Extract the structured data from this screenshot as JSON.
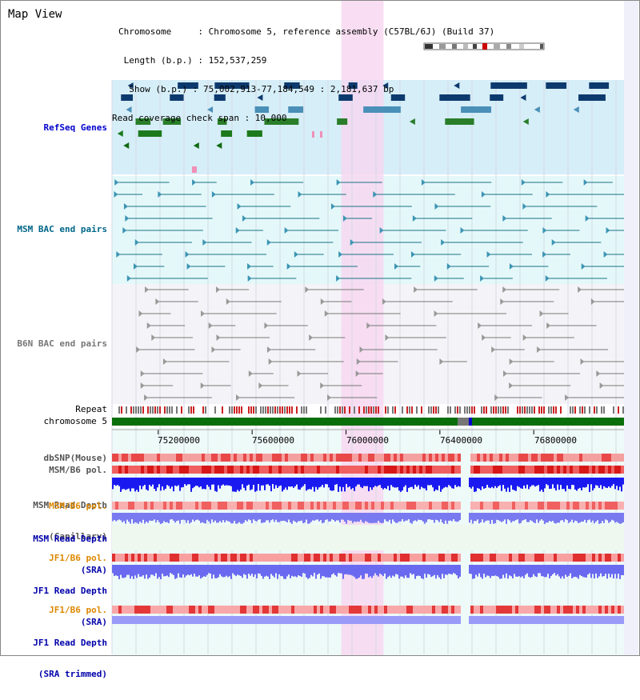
{
  "app": {
    "title": "Map View"
  },
  "info": {
    "chromosome_line": "Chromosome     : Chromosome 5, reference assembly (C57BL/6J) (Build 37)",
    "length_line": " Length (b.p.) : 152,537,259",
    "show_line": "  Show (b.p.) : 75,002,913-77,184,549 : 2,181,637 bp",
    "coverage_line": "Read coverage check span : 10,000"
  },
  "tracks": {
    "refseq": "RefSeq Genes",
    "msm_bac": "MSM BAC end pairs",
    "b6n_bac": "B6N BAC end pairs",
    "repeat": "Repeat",
    "chromosome": "chromosome 5",
    "dbsnp": "dbSNP(Mouse)",
    "msm_b6_pol": "MSM/B6 pol.",
    "msm_read_cap_1": "MSM Read Depth",
    "msm_read_cap_2": "(Capillary)",
    "msm_b6_pol_sra": "MSM/B6 pol.",
    "msm_read_sra_1": "MSM Read Depth",
    "msm_read_sra_2": "(SRA)",
    "jf1_b6_pol": "JF1/B6 pol.",
    "jf1_read_sra_1": "JF1 Read Depth",
    "jf1_read_sra_2": "(SRA)",
    "jf1_b6_pol_2": "JF1/B6 pol.",
    "jf1_read_trim_1": "JF1 Read Depth",
    "jf1_read_trim_2": "(SRA trimmed)"
  },
  "axis": {
    "ticks": [
      "75200000",
      "75600000",
      "76000000",
      "76400000",
      "76800000"
    ],
    "tick_values": [
      75200000,
      75600000,
      76000000,
      76400000,
      76800000
    ],
    "range": [
      75002913,
      77184549
    ]
  },
  "highlight_range": [
    75980000,
    76160000
  ],
  "colors": {
    "refseq_label": "#0000cc",
    "msm_bac_label": "#006688",
    "b6n_bac_label": "#777777",
    "orange_label": "#dd8800",
    "blue_label": "#0000aa",
    "highlight": "#f7d6f0"
  }
}
